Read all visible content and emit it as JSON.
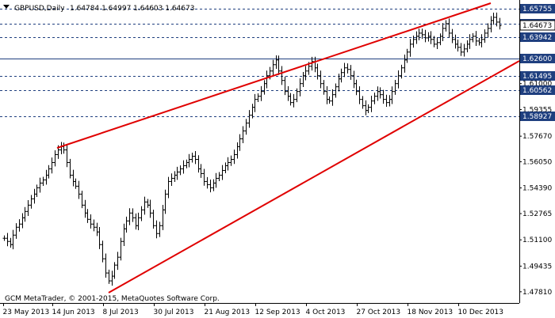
{
  "header": {
    "symbol": "GBPUSD,Daily",
    "ohlc": "1.64784 1.64997 1.64603 1.64673"
  },
  "footer": {
    "copyright": "GCM MetaTrader, © 2001-2015, MetaQuotes Software Corp."
  },
  "colors": {
    "background": "#ffffff",
    "bar": "#000000",
    "trendline": "#e00000",
    "level_line": "#1f3f7f",
    "level_label": "#1f3f7f",
    "axis": "#000000"
  },
  "chart_data": {
    "type": "ohlc",
    "symbol": "GBPUSD",
    "timeframe": "Daily",
    "ylim": [
      1.471,
      1.663
    ],
    "y_ticks": [
      "1.65755",
      "1.64808",
      "1.63942",
      "1.62600",
      "1.61495",
      "1.61000",
      "1.60562",
      "1.59355",
      "1.58927",
      "1.57670",
      "1.56050",
      "1.54390",
      "1.52765",
      "1.51100",
      "1.49435",
      "1.47810"
    ],
    "x_ticks": [
      "23 May 2013",
      "14 Jun 2013",
      "8 Jul 2013",
      "30 Jul 2013",
      "21 Aug 2013",
      "12 Sep 2013",
      "4 Oct 2013",
      "27 Oct 2013",
      "18 Nov 2013",
      "10 Dec 2013"
    ],
    "last_price": "1.64673",
    "horizontal_levels": [
      "1.65755",
      "1.64808",
      "1.63942",
      "1.62600",
      "1.61495",
      "1.60562",
      "1.58927"
    ],
    "solid_levels": [
      "1.62600"
    ],
    "closes": [
      1.512,
      1.51,
      1.508,
      1.514,
      1.519,
      1.521,
      1.525,
      1.529,
      1.533,
      1.537,
      1.54,
      1.544,
      1.547,
      1.549,
      1.552,
      1.556,
      1.56,
      1.565,
      1.568,
      1.57,
      1.568,
      1.56,
      1.552,
      1.548,
      1.545,
      1.54,
      1.533,
      1.528,
      1.524,
      1.521,
      1.519,
      1.516,
      1.508,
      1.499,
      1.49,
      1.485,
      1.488,
      1.495,
      1.5,
      1.51,
      1.518,
      1.523,
      1.528,
      1.525,
      1.52,
      1.525,
      1.53,
      1.535,
      1.533,
      1.528,
      1.52,
      1.515,
      1.52,
      1.53,
      1.54,
      1.548,
      1.55,
      1.552,
      1.554,
      1.556,
      1.558,
      1.56,
      1.562,
      1.564,
      1.562,
      1.556,
      1.553,
      1.548,
      1.546,
      1.544,
      1.547,
      1.55,
      1.552,
      1.555,
      1.558,
      1.56,
      1.562,
      1.565,
      1.57,
      1.575,
      1.58,
      1.585,
      1.59,
      1.595,
      1.6,
      1.602,
      1.605,
      1.61,
      1.615,
      1.618,
      1.622,
      1.625,
      1.618,
      1.612,
      1.605,
      1.602,
      1.598,
      1.6,
      1.605,
      1.61,
      1.615,
      1.618,
      1.621,
      1.624,
      1.62,
      1.615,
      1.61,
      1.605,
      1.6,
      1.599,
      1.603,
      1.608,
      1.613,
      1.617,
      1.62,
      1.619,
      1.615,
      1.61,
      1.605,
      1.6,
      1.596,
      1.593,
      1.595,
      1.599,
      1.602,
      1.605,
      1.603,
      1.6,
      1.598,
      1.6,
      1.605,
      1.61,
      1.615,
      1.62,
      1.625,
      1.63,
      1.635,
      1.638,
      1.64,
      1.642,
      1.641,
      1.639,
      1.64,
      1.638,
      1.635,
      1.636,
      1.64,
      1.645,
      1.648,
      1.642,
      1.638,
      1.635,
      1.633,
      1.63,
      1.632,
      1.635,
      1.638,
      1.64,
      1.637,
      1.636,
      1.638,
      1.642,
      1.645,
      1.65,
      1.652,
      1.649,
      1.6467
    ]
  }
}
